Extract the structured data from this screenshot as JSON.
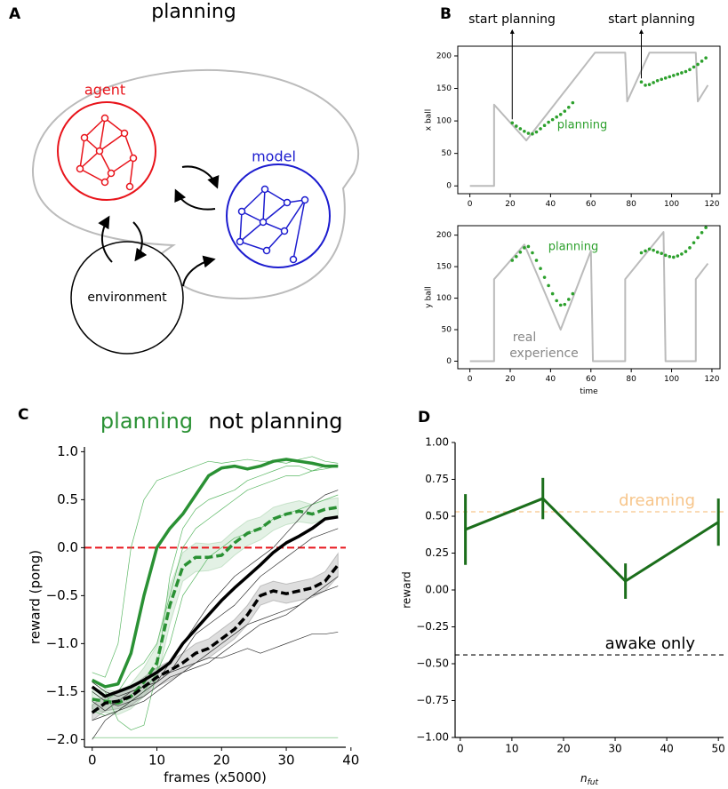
{
  "figure": {
    "panel_a": {
      "label": "A",
      "title": "planning",
      "agent": "agent",
      "model": "model",
      "environment": "environment"
    }
  },
  "chart_data": [
    {
      "type": "line",
      "panel": "B",
      "ylabel": "x ball",
      "spines": "box",
      "xlim": [
        -6,
        124
      ],
      "ylim": [
        -12,
        215
      ],
      "xticks": [
        0,
        20,
        40,
        60,
        80,
        100,
        120
      ],
      "yticks": [
        0,
        50,
        100,
        150,
        200
      ],
      "annotations": [
        "start planning",
        "start planning",
        "planning"
      ],
      "series": [
        {
          "color": "#bbbbbb",
          "width": 2,
          "x": [
            0,
            12,
            12,
            28,
            62,
            77,
            78,
            89,
            112,
            113,
            118
          ],
          "values": [
            0,
            0,
            125,
            70,
            205,
            205,
            130,
            205,
            205,
            130,
            155
          ]
        },
        {
          "color": "#2ca02c",
          "marker": "dot",
          "x": [
            21,
            23,
            25,
            27,
            29,
            31,
            33,
            35,
            37,
            39,
            41,
            43,
            45,
            47,
            49,
            51,
            85,
            87,
            89,
            91,
            93,
            95,
            97,
            99,
            101,
            103,
            105,
            107,
            109,
            111,
            113,
            115,
            117
          ],
          "values": [
            97,
            92,
            88,
            84,
            81,
            80,
            83,
            88,
            93,
            98,
            102,
            106,
            110,
            115,
            121,
            128,
            160,
            155,
            156,
            159,
            162,
            164,
            166,
            168,
            170,
            172,
            174,
            176,
            179,
            183,
            187,
            192,
            197
          ]
        }
      ]
    },
    {
      "type": "line",
      "panel": "",
      "ylabel": "y ball",
      "xlabel": "time",
      "spines": "box",
      "xlim": [
        -6,
        124
      ],
      "ylim": [
        -12,
        215
      ],
      "xticks": [
        0,
        20,
        40,
        60,
        80,
        100,
        120
      ],
      "yticks": [
        0,
        50,
        100,
        150,
        200
      ],
      "annotations": [
        "planning",
        "real",
        "experience"
      ],
      "series": [
        {
          "color": "#bbbbbb",
          "width": 2,
          "x": [
            0,
            12,
            12,
            27,
            45,
            60,
            61,
            77,
            77,
            96,
            97,
            112,
            112,
            118
          ],
          "values": [
            0,
            0,
            130,
            185,
            50,
            175,
            0,
            0,
            130,
            205,
            0,
            0,
            130,
            155
          ]
        },
        {
          "color": "#2ca02c",
          "marker": "dot",
          "x": [
            21,
            23,
            25,
            27,
            29,
            31,
            33,
            35,
            37,
            39,
            41,
            43,
            45,
            47,
            49,
            51,
            85,
            87,
            89,
            91,
            93,
            95,
            97,
            99,
            101,
            103,
            105,
            107,
            109,
            111,
            113,
            115,
            117
          ],
          "values": [
            160,
            166,
            173,
            180,
            182,
            172,
            160,
            147,
            133,
            120,
            107,
            96,
            89,
            90,
            98,
            107,
            172,
            175,
            178,
            176,
            173,
            171,
            168,
            166,
            165,
            167,
            170,
            174,
            180,
            188,
            196,
            204,
            212
          ]
        }
      ]
    },
    {
      "type": "line",
      "panel": "C",
      "titles": [
        {
          "text": "planning",
          "color": "#2a9134"
        },
        {
          "text": "not planning",
          "color": "#000000"
        }
      ],
      "xlabel": "frames (x5000)",
      "ylabel": "reward (pong)",
      "spines": "left-bottom",
      "xlim": [
        -1.2,
        39.2
      ],
      "ylim": [
        -2.08,
        1.05
      ],
      "xticks": [
        0,
        10,
        20,
        30,
        40
      ],
      "yticks": [
        {
          "value": 1,
          "label": "1.0"
        },
        0.5,
        {
          "value": 0,
          "label": "0.0"
        },
        {
          "value": -0.5,
          "label": "−0.5"
        },
        {
          "value": -1,
          "label": "−1.0"
        },
        {
          "value": -1.5,
          "label": "−1.5"
        },
        {
          "value": -2,
          "label": "−2.0"
        }
      ],
      "hlines": [
        {
          "value": 0,
          "color": "#e8141b"
        }
      ],
      "x": [
        0,
        2,
        4,
        6,
        8,
        10,
        12,
        14,
        16,
        18,
        20,
        22,
        24,
        26,
        28,
        30,
        32,
        34,
        36,
        38
      ],
      "series": [
        {
          "color": "#5cb865",
          "width": 0.7,
          "values": [
            -1.3,
            -1.35,
            -1.0,
            0.0,
            0.5,
            0.7,
            0.75,
            0.8,
            0.85,
            0.9,
            0.88,
            0.9,
            0.92,
            0.9,
            0.9,
            0.88,
            0.92,
            0.95,
            0.9,
            0.88
          ]
        },
        {
          "color": "#5cb865",
          "width": 0.7,
          "values": [
            -1.5,
            -1.6,
            -1.5,
            -1.3,
            -1.2,
            -1.0,
            -0.5,
            0.0,
            0.2,
            0.3,
            0.4,
            0.5,
            0.6,
            0.65,
            0.7,
            0.75,
            0.75,
            0.8,
            0.85,
            0.85
          ]
        },
        {
          "color": "#5cb865",
          "width": 0.7,
          "values": [
            -1.98,
            -1.98,
            -1.98,
            -1.98,
            -1.98,
            -1.98,
            -1.98,
            -1.98,
            -1.98,
            -1.98,
            -1.98,
            -1.98,
            -1.98,
            -1.98,
            -1.98,
            -1.98,
            -1.98,
            -1.98,
            -1.98,
            -1.98
          ]
        },
        {
          "color": "#5cb865",
          "width": 0.7,
          "values": [
            -1.7,
            -1.75,
            -1.7,
            -1.6,
            -1.5,
            -1.3,
            -1.0,
            -0.5,
            -0.3,
            -0.1,
            0.0,
            0.1,
            0.15,
            0.2,
            0.3,
            0.35,
            0.4,
            0.45,
            0.5,
            0.55
          ]
        },
        {
          "color": "#5cb865",
          "width": 0.7,
          "values": [
            -1.4,
            -1.5,
            -1.8,
            -1.9,
            -1.85,
            -1.3,
            -0.3,
            0.2,
            0.4,
            0.5,
            0.55,
            0.6,
            0.7,
            0.75,
            0.8,
            0.85,
            0.85,
            0.8,
            0.82,
            0.85
          ]
        },
        {
          "color": "#333333",
          "width": 0.7,
          "values": [
            -1.6,
            -1.7,
            -1.6,
            -1.5,
            -1.45,
            -1.4,
            -1.2,
            -1.0,
            -0.8,
            -0.6,
            -0.45,
            -0.3,
            -0.2,
            -0.1,
            0.0,
            0.15,
            0.3,
            0.45,
            0.55,
            0.6
          ]
        },
        {
          "color": "#333333",
          "width": 0.7,
          "values": [
            -2.0,
            -1.8,
            -1.7,
            -1.65,
            -1.6,
            -1.5,
            -1.4,
            -1.3,
            -1.2,
            -1.1,
            -1.0,
            -0.9,
            -0.8,
            -0.75,
            -0.7,
            -0.65,
            -0.6,
            -0.5,
            -0.45,
            -0.4
          ]
        },
        {
          "color": "#333333",
          "width": 0.7,
          "values": [
            -1.4,
            -1.5,
            -1.55,
            -1.5,
            -1.45,
            -1.4,
            -1.3,
            -1.25,
            -1.2,
            -1.15,
            -1.15,
            -1.1,
            -1.05,
            -1.1,
            -1.05,
            -1.0,
            -0.95,
            -0.9,
            -0.9,
            -0.88
          ]
        },
        {
          "color": "#333333",
          "width": 0.7,
          "values": [
            -1.8,
            -1.75,
            -1.7,
            -1.6,
            -1.5,
            -1.4,
            -1.3,
            -1.1,
            -0.9,
            -0.8,
            -0.7,
            -0.6,
            -0.45,
            -0.3,
            -0.2,
            -0.1,
            0.0,
            0.1,
            0.15,
            0.2
          ]
        },
        {
          "color": "#333333",
          "width": 0.7,
          "values": [
            -1.5,
            -1.6,
            -1.65,
            -1.6,
            -1.55,
            -1.45,
            -1.35,
            -1.3,
            -1.25,
            -1.2,
            -1.1,
            -1.0,
            -0.9,
            -0.8,
            -0.75,
            -0.7,
            -0.6,
            -0.5,
            -0.4,
            -0.3
          ]
        },
        {
          "color": "#2a9134",
          "width": 3.5,
          "values": [
            -1.38,
            -1.45,
            -1.42,
            -1.1,
            -0.5,
            0.0,
            0.2,
            0.35,
            0.55,
            0.75,
            0.83,
            0.85,
            0.82,
            0.85,
            0.9,
            0.92,
            0.9,
            0.88,
            0.85,
            0.85
          ]
        },
        {
          "color": "#2a9134",
          "width": 3.5,
          "dash": true,
          "values": [
            -1.58,
            -1.6,
            -1.62,
            -1.55,
            -1.4,
            -1.2,
            -0.6,
            -0.2,
            -0.1,
            -0.1,
            -0.08,
            0.05,
            0.15,
            0.2,
            0.3,
            0.35,
            0.38,
            0.35,
            0.4,
            0.42
          ],
          "lower": [
            -1.68,
            -1.72,
            -1.74,
            -1.68,
            -1.55,
            -1.38,
            -0.8,
            -0.35,
            -0.25,
            -0.24,
            -0.2,
            -0.08,
            0.02,
            0.08,
            0.18,
            0.24,
            0.27,
            0.25,
            0.3,
            0.32
          ],
          "upper": [
            -1.48,
            -1.48,
            -1.5,
            -1.42,
            -1.25,
            -1.02,
            -0.4,
            -0.05,
            0.05,
            0.04,
            0.06,
            0.18,
            0.28,
            0.32,
            0.42,
            0.46,
            0.49,
            0.45,
            0.5,
            0.52
          ]
        },
        {
          "color": "#000000",
          "width": 3.5,
          "values": [
            -1.45,
            -1.55,
            -1.5,
            -1.45,
            -1.38,
            -1.3,
            -1.2,
            -1.0,
            -0.85,
            -0.7,
            -0.55,
            -0.42,
            -0.3,
            -0.18,
            -0.05,
            0.05,
            0.12,
            0.2,
            0.3,
            0.32
          ]
        },
        {
          "color": "#000000",
          "width": 3.5,
          "dash": true,
          "values": [
            -1.72,
            -1.62,
            -1.6,
            -1.55,
            -1.45,
            -1.35,
            -1.28,
            -1.2,
            -1.1,
            -1.05,
            -0.95,
            -0.85,
            -0.7,
            -0.5,
            -0.45,
            -0.48,
            -0.45,
            -0.42,
            -0.35,
            -0.18
          ],
          "lower": [
            -1.8,
            -1.7,
            -1.68,
            -1.64,
            -1.55,
            -1.45,
            -1.38,
            -1.3,
            -1.2,
            -1.15,
            -1.05,
            -0.95,
            -0.8,
            -0.6,
            -0.55,
            -0.58,
            -0.55,
            -0.52,
            -0.45,
            -0.3
          ],
          "upper": [
            -1.64,
            -1.54,
            -1.52,
            -1.46,
            -1.35,
            -1.25,
            -1.18,
            -1.1,
            -1.0,
            -0.95,
            -0.85,
            -0.75,
            -0.6,
            -0.4,
            -0.35,
            -0.38,
            -0.35,
            -0.32,
            -0.25,
            -0.06
          ]
        }
      ]
    },
    {
      "type": "line",
      "panel": "D",
      "xlabel": "n",
      "xlabel_sub": "fut",
      "ylabel": "reward",
      "spines": "left-bottom",
      "xlim": [
        -1,
        51
      ],
      "ylim": [
        -1,
        1
      ],
      "xticks": [
        0,
        10,
        20,
        30,
        40,
        50
      ],
      "yticks": [
        {
          "value": 1,
          "label": "1.00"
        },
        0.75,
        {
          "value": 0.5,
          "label": "0.50"
        },
        0.25,
        {
          "value": 0,
          "label": "0.00"
        },
        {
          "value": -0.25,
          "label": "−0.25"
        },
        {
          "value": -0.5,
          "label": "−0.50"
        },
        {
          "value": -0.75,
          "label": "−0.75"
        },
        {
          "value": -1,
          "label": "−1.00"
        }
      ],
      "hlines": [
        {
          "value": 0.53,
          "color": "#f7c58a",
          "label": "dreaming"
        },
        {
          "value": -0.44,
          "color": "#000000",
          "label": "awake only"
        }
      ],
      "x": [
        1,
        16,
        32,
        50
      ],
      "series": [
        {
          "color": "#1b6e1b",
          "width": 3,
          "values": [
            0.41,
            0.62,
            0.06,
            0.46
          ],
          "error": [
            0.24,
            0.14,
            0.12,
            0.16
          ]
        }
      ]
    }
  ]
}
